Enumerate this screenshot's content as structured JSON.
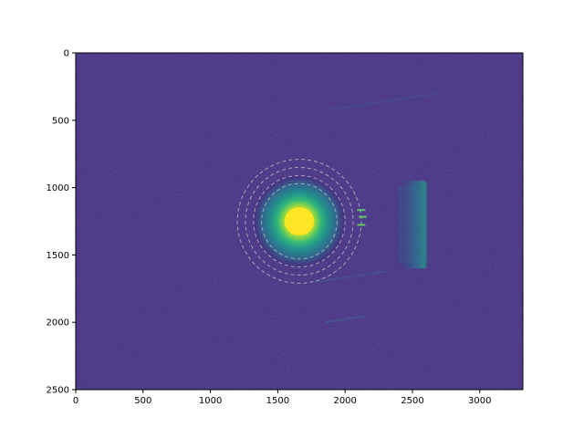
{
  "chart_data": {
    "type": "heatmap",
    "title": "",
    "xlabel": "",
    "ylabel": "",
    "colormap": "viridis",
    "xlim": [
      0,
      3320
    ],
    "ylim": [
      2500,
      0
    ],
    "y_inverted": true,
    "xticks": [
      0,
      500,
      1000,
      1500,
      2000,
      2500,
      3000
    ],
    "yticks": [
      0,
      500,
      1000,
      1500,
      2000,
      2500
    ],
    "xtick_labels": [
      "0",
      "500",
      "1000",
      "1500",
      "2000",
      "2500",
      "3000"
    ],
    "ytick_labels": [
      "0",
      "500",
      "1000",
      "1500",
      "2000",
      "2500"
    ],
    "grid": false,
    "background_color": "#3e2a7c",
    "beam_spot": {
      "cx": 1660,
      "cy": 1250,
      "core_radius": 110,
      "halo_radius": 350,
      "peak_color": "#fde725"
    },
    "dashed_rings": {
      "cx": 1660,
      "cy": 1250,
      "radii": [
        280,
        340,
        400,
        460
      ],
      "color": "#c8c8c8"
    },
    "streak_band": {
      "x0": 2360,
      "x1": 2620,
      "y0": 950,
      "y1": 1600
    }
  }
}
